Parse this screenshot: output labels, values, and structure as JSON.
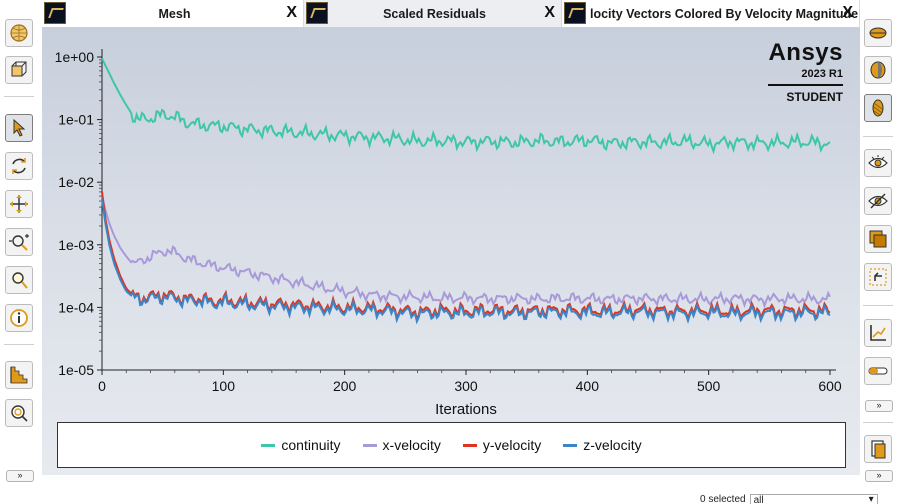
{
  "tabs": [
    {
      "label": "Mesh",
      "close": "X",
      "active": false
    },
    {
      "label": "Scaled Residuals",
      "close": "X",
      "active": true
    },
    {
      "label": "locity Vectors Colored By Velocity Magnitude [m,",
      "close": "X",
      "active": false
    }
  ],
  "logo": {
    "brand": "Ansys",
    "version": "2023 R1",
    "edition": "STUDENT"
  },
  "left_toolbar": [
    "mesh-sphere-icon",
    "cube-icon",
    "select-arrow-icon",
    "rotate-icon",
    "pan-icon",
    "zoom-in-out-icon",
    "zoom-box-icon",
    "info-icon",
    "stair-icon",
    "zoom-fit-icon"
  ],
  "right_toolbar": [
    "display-front-icon",
    "display-side-icon",
    "display-hatched-icon",
    "eye-icon",
    "eye-hide-icon",
    "copy-window-icon",
    "undo-view-icon",
    "axes-icon",
    "toggle-icon",
    "page-icon"
  ],
  "more_label": "»",
  "status": {
    "selected_text": "0 selected",
    "filter_value": "all"
  },
  "colors": {
    "continuity": "#3fc6a8",
    "x-velocity": "#a89ad8",
    "y-velocity": "#e0321e",
    "z-velocity": "#3a86c8"
  },
  "chart_data": {
    "type": "line",
    "title": "",
    "xlabel": "Iterations",
    "ylabel": "",
    "xlim": [
      0,
      600
    ],
    "ylim": [
      1e-05,
      1
    ],
    "yscale": "log",
    "grid": false,
    "legend_position": "bottom",
    "xticks": [
      0,
      100,
      200,
      300,
      400,
      500,
      600
    ],
    "xtick_labels": [
      "0",
      "100",
      "200",
      "300",
      "400",
      "500",
      "600"
    ],
    "yticks": [
      1,
      0.1,
      0.01,
      0.001,
      0.0001,
      1e-05
    ],
    "ytick_labels": [
      "1e+00",
      "1e-01",
      "1e-02",
      "1e-03",
      "1e-04",
      "1e-05"
    ],
    "series": [
      {
        "name": "continuity",
        "x": [
          0,
          5,
          10,
          15,
          20,
          25,
          30,
          40,
          50,
          55,
          60,
          70,
          80,
          90,
          100,
          120,
          140,
          160,
          180,
          200,
          220,
          240,
          260,
          280,
          300,
          320,
          340,
          360,
          380,
          400,
          420,
          440,
          460,
          480,
          500,
          520,
          540,
          560,
          580,
          600
        ],
        "y": [
          0.95,
          0.6,
          0.38,
          0.25,
          0.17,
          0.12,
          0.1,
          0.105,
          0.12,
          0.118,
          0.11,
          0.09,
          0.082,
          0.08,
          0.078,
          0.07,
          0.066,
          0.062,
          0.058,
          0.055,
          0.052,
          0.05,
          0.045,
          0.046,
          0.044,
          0.045,
          0.043,
          0.046,
          0.044,
          0.047,
          0.042,
          0.044,
          0.043,
          0.045,
          0.041,
          0.044,
          0.042,
          0.043,
          0.044,
          0.041
        ]
      },
      {
        "name": "x-velocity",
        "x": [
          0,
          3,
          6,
          10,
          15,
          20,
          25,
          30,
          40,
          50,
          55,
          60,
          70,
          80,
          90,
          100,
          120,
          140,
          160,
          180,
          200,
          220,
          240,
          260,
          280,
          300,
          320,
          340,
          360,
          380,
          400,
          420,
          440,
          460,
          480,
          500,
          520,
          540,
          560,
          580,
          600
        ],
        "y": [
          0.006,
          0.0035,
          0.0022,
          0.0014,
          0.0009,
          0.00065,
          0.0005,
          0.00052,
          0.00065,
          0.00078,
          0.0008,
          0.00075,
          0.0006,
          0.00052,
          0.00047,
          0.00043,
          0.00036,
          0.0003,
          0.00025,
          0.00021,
          0.00018,
          0.00016,
          0.00015,
          0.000145,
          0.00014,
          0.000142,
          0.000138,
          0.00014,
          0.000136,
          0.00014,
          0.000138,
          0.000135,
          0.00014,
          0.000137,
          0.000136,
          0.000134,
          0.000139,
          0.000135,
          0.000138,
          0.000136,
          0.000134
        ]
      },
      {
        "name": "y-velocity",
        "x": [
          0,
          3,
          6,
          10,
          15,
          20,
          25,
          30,
          40,
          50,
          60,
          70,
          80,
          90,
          100,
          120,
          140,
          160,
          180,
          200,
          220,
          240,
          260,
          280,
          300,
          320,
          340,
          360,
          380,
          400,
          420,
          440,
          460,
          480,
          500,
          520,
          540,
          560,
          580,
          600
        ],
        "y": [
          0.007,
          0.0025,
          0.0012,
          0.0006,
          0.00032,
          0.0002,
          0.00016,
          0.00014,
          0.00015,
          0.00016,
          0.00015,
          0.000135,
          0.00014,
          0.000125,
          0.00013,
          0.00012,
          0.000115,
          0.00011,
          0.000105,
          0.0001,
          9.8e-05,
          9.2e-05,
          8.5e-05,
          9e-05,
          8.8e-05,
          9.2e-05,
          8.7e-05,
          9e-05,
          9.1e-05,
          9e-05,
          8.8e-05,
          9.3e-05,
          8.9e-05,
          8.7e-05,
          9.1e-05,
          8.5e-05,
          9e-05,
          8.8e-05,
          9e-05,
          8.9e-05
        ]
      },
      {
        "name": "z-velocity",
        "x": [
          0,
          3,
          6,
          10,
          15,
          20,
          25,
          30,
          40,
          50,
          60,
          70,
          80,
          90,
          100,
          120,
          140,
          160,
          180,
          200,
          220,
          240,
          260,
          280,
          300,
          320,
          340,
          360,
          380,
          400,
          420,
          440,
          460,
          480,
          500,
          520,
          540,
          560,
          580,
          600
        ],
        "y": [
          0.0055,
          0.0021,
          0.001,
          0.0005,
          0.00028,
          0.00018,
          0.00015,
          0.00013,
          0.00014,
          0.000145,
          0.00014,
          0.000125,
          0.00013,
          0.000115,
          0.00012,
          0.00011,
          0.000105,
          0.0001,
          9.6e-05,
          9.2e-05,
          9e-05,
          8.5e-05,
          7.8e-05,
          8.2e-05,
          8e-05,
          8.4e-05,
          8e-05,
          8.3e-05,
          8.4e-05,
          8.2e-05,
          8.1e-05,
          8.5e-05,
          8.2e-05,
          8e-05,
          8.3e-05,
          7.8e-05,
          8.2e-05,
          8e-05,
          8.2e-05,
          8.1e-05
        ]
      }
    ]
  }
}
